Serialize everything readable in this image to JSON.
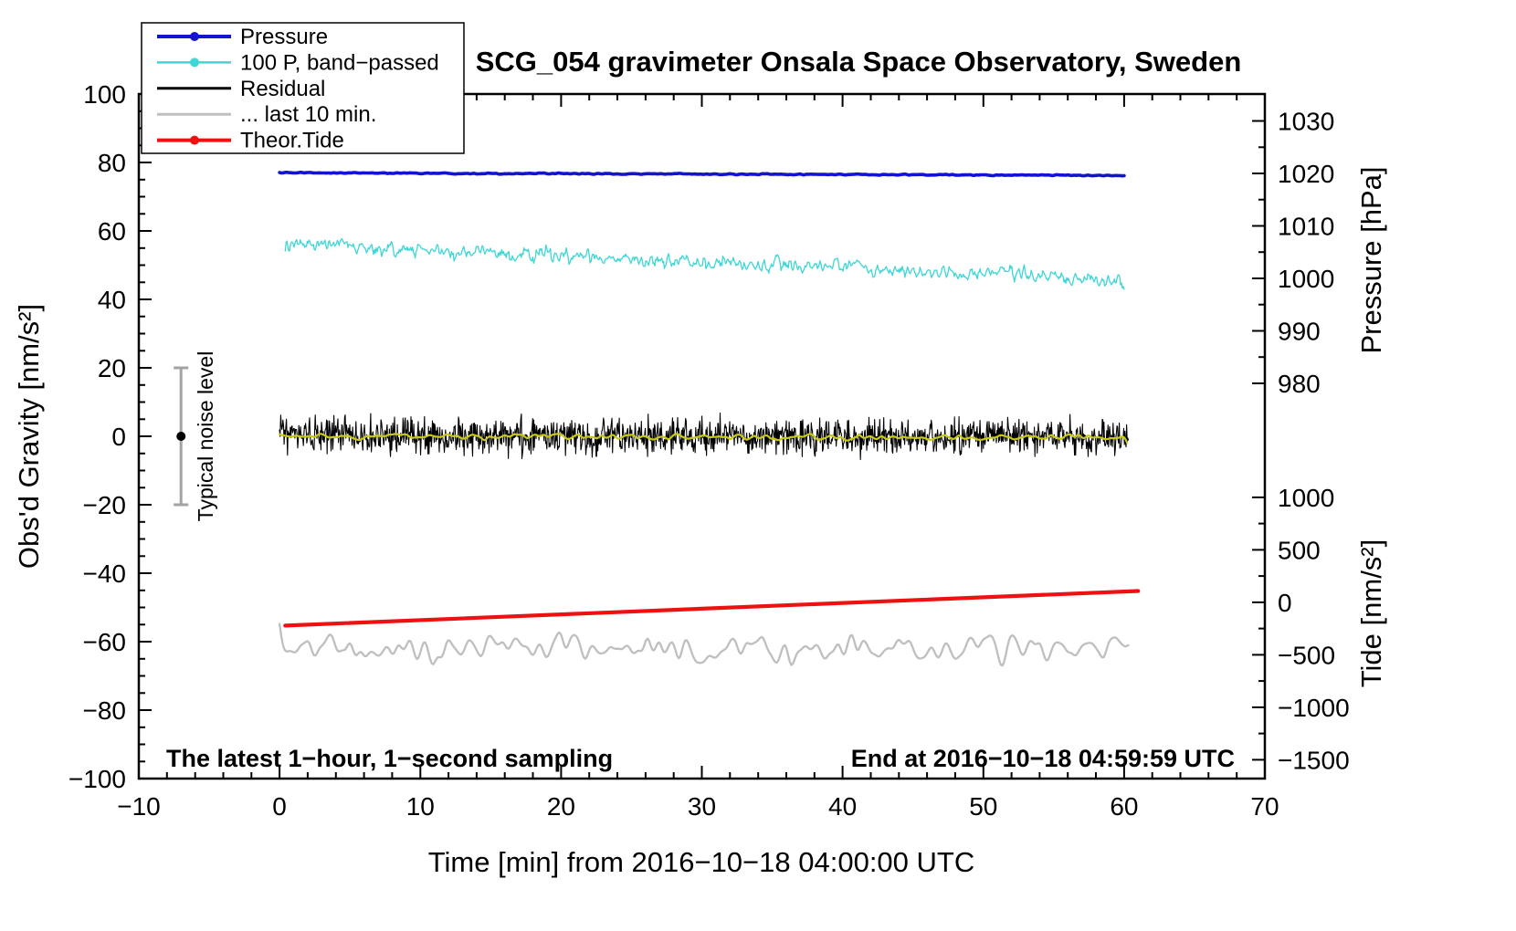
{
  "title": "SCG_054 gravimeter Onsala Space Observatory, Sweden",
  "annotations": {
    "sampling": "The latest 1−hour, 1−second sampling",
    "end_time": "End at 2016−10−18 04:59:59 UTC",
    "noise_level": "Typical noise level"
  },
  "legend": {
    "items": [
      {
        "label": "Pressure",
        "color": "#1313d2",
        "marker": true,
        "lw": 4
      },
      {
        "label": "100 P, band−passed",
        "color": "#3fd6d6",
        "marker": true,
        "lw": 2.5
      },
      {
        "label": "Residual",
        "color": "#000000",
        "marker": false,
        "lw": 3
      },
      {
        "label": "... last 10 min.",
        "color": "#bfbfbf",
        "marker": false,
        "lw": 3
      },
      {
        "label": "Theor.Tide",
        "color": "#ee1111",
        "marker": true,
        "lw": 4
      }
    ]
  },
  "chart_data": {
    "type": "line",
    "title": "SCG_054 gravimeter Onsala Space Observatory, Sweden",
    "x_axis": {
      "label": "Time [min] from 2016−10−18 04:00:00 UTC",
      "min": -10,
      "max": 70,
      "major_ticks": [
        -10,
        0,
        10,
        20,
        30,
        40,
        50,
        60,
        70
      ],
      "minor_step": 2
    },
    "y_left": {
      "label": "Obs'd Gravity [nm/s²]",
      "min": -100,
      "max": 100,
      "major_ticks": [
        -100,
        -80,
        -60,
        -40,
        -20,
        0,
        20,
        40,
        60,
        80,
        100
      ],
      "minor_step": 5
    },
    "y_right_pressure": {
      "label": "Pressure [hPa]",
      "ticks": [
        1030,
        1020,
        1010,
        1000,
        990,
        980
      ],
      "minor_step": 5,
      "range": [
        980,
        1030
      ],
      "anchor_value": 1020,
      "anchor_gravity": 76.8,
      "gravity_per_unit": 1.5333
    },
    "y_right_tide": {
      "label": "Tide [nm/s²]",
      "ticks": [
        1000,
        500,
        0,
        -500,
        -1000,
        -1500
      ],
      "minor_step": 250,
      "range": [
        -1500,
        1000
      ],
      "anchor_value": 0,
      "anchor_gravity": -48.5,
      "gravity_per_unit": 0.030667
    },
    "noise_indicator": {
      "x": -7,
      "y_center": 0,
      "half_range": 20
    },
    "series": [
      {
        "name": "Pressure",
        "color": "#1313d2",
        "width": 3.6,
        "x_start": 0,
        "x_end": 60,
        "y_start": 77.0,
        "y_end": 76.2,
        "noise": 0.22,
        "smooth": 3,
        "points": 900
      },
      {
        "name": "100 P, band−passed",
        "color": "#3fd6d6",
        "width": 1.3,
        "x_start": 0.4,
        "x_end": 60,
        "y_start": 56.0,
        "y_end": 45.7,
        "noise": 3.2,
        "smooth": 1,
        "points": 950
      },
      {
        "name": "Residual",
        "color": "#000000",
        "width": 1.1,
        "x_start": 0,
        "x_end": 60.3,
        "y_start": 0.2,
        "y_end": -0.2,
        "noise": 6.8,
        "smooth": 0,
        "points": 1500
      },
      {
        "name": "Residual smoothed",
        "color": "#c9c913",
        "width": 2.2,
        "x_start": 0,
        "x_end": 60.2,
        "y_start": 0,
        "y_end": -0.4,
        "noise": 1.4,
        "smooth": 4,
        "points": 620
      },
      {
        "name": "... last 10 min.",
        "color": "#bfbfbf",
        "width": 2.3,
        "x_start": 0,
        "x_end": 60.3,
        "y_start": -61.3,
        "y_end": -62.0,
        "noise": 6.5,
        "smooth": 5,
        "points": 520
      },
      {
        "name": "Theor.Tide",
        "color": "#ee1111",
        "width": 4.2,
        "x_start": 0.4,
        "x_end": 61,
        "y_start": -55.3,
        "y_end": -45.2,
        "noise": 0,
        "smooth": 0,
        "points": 2
      }
    ]
  }
}
